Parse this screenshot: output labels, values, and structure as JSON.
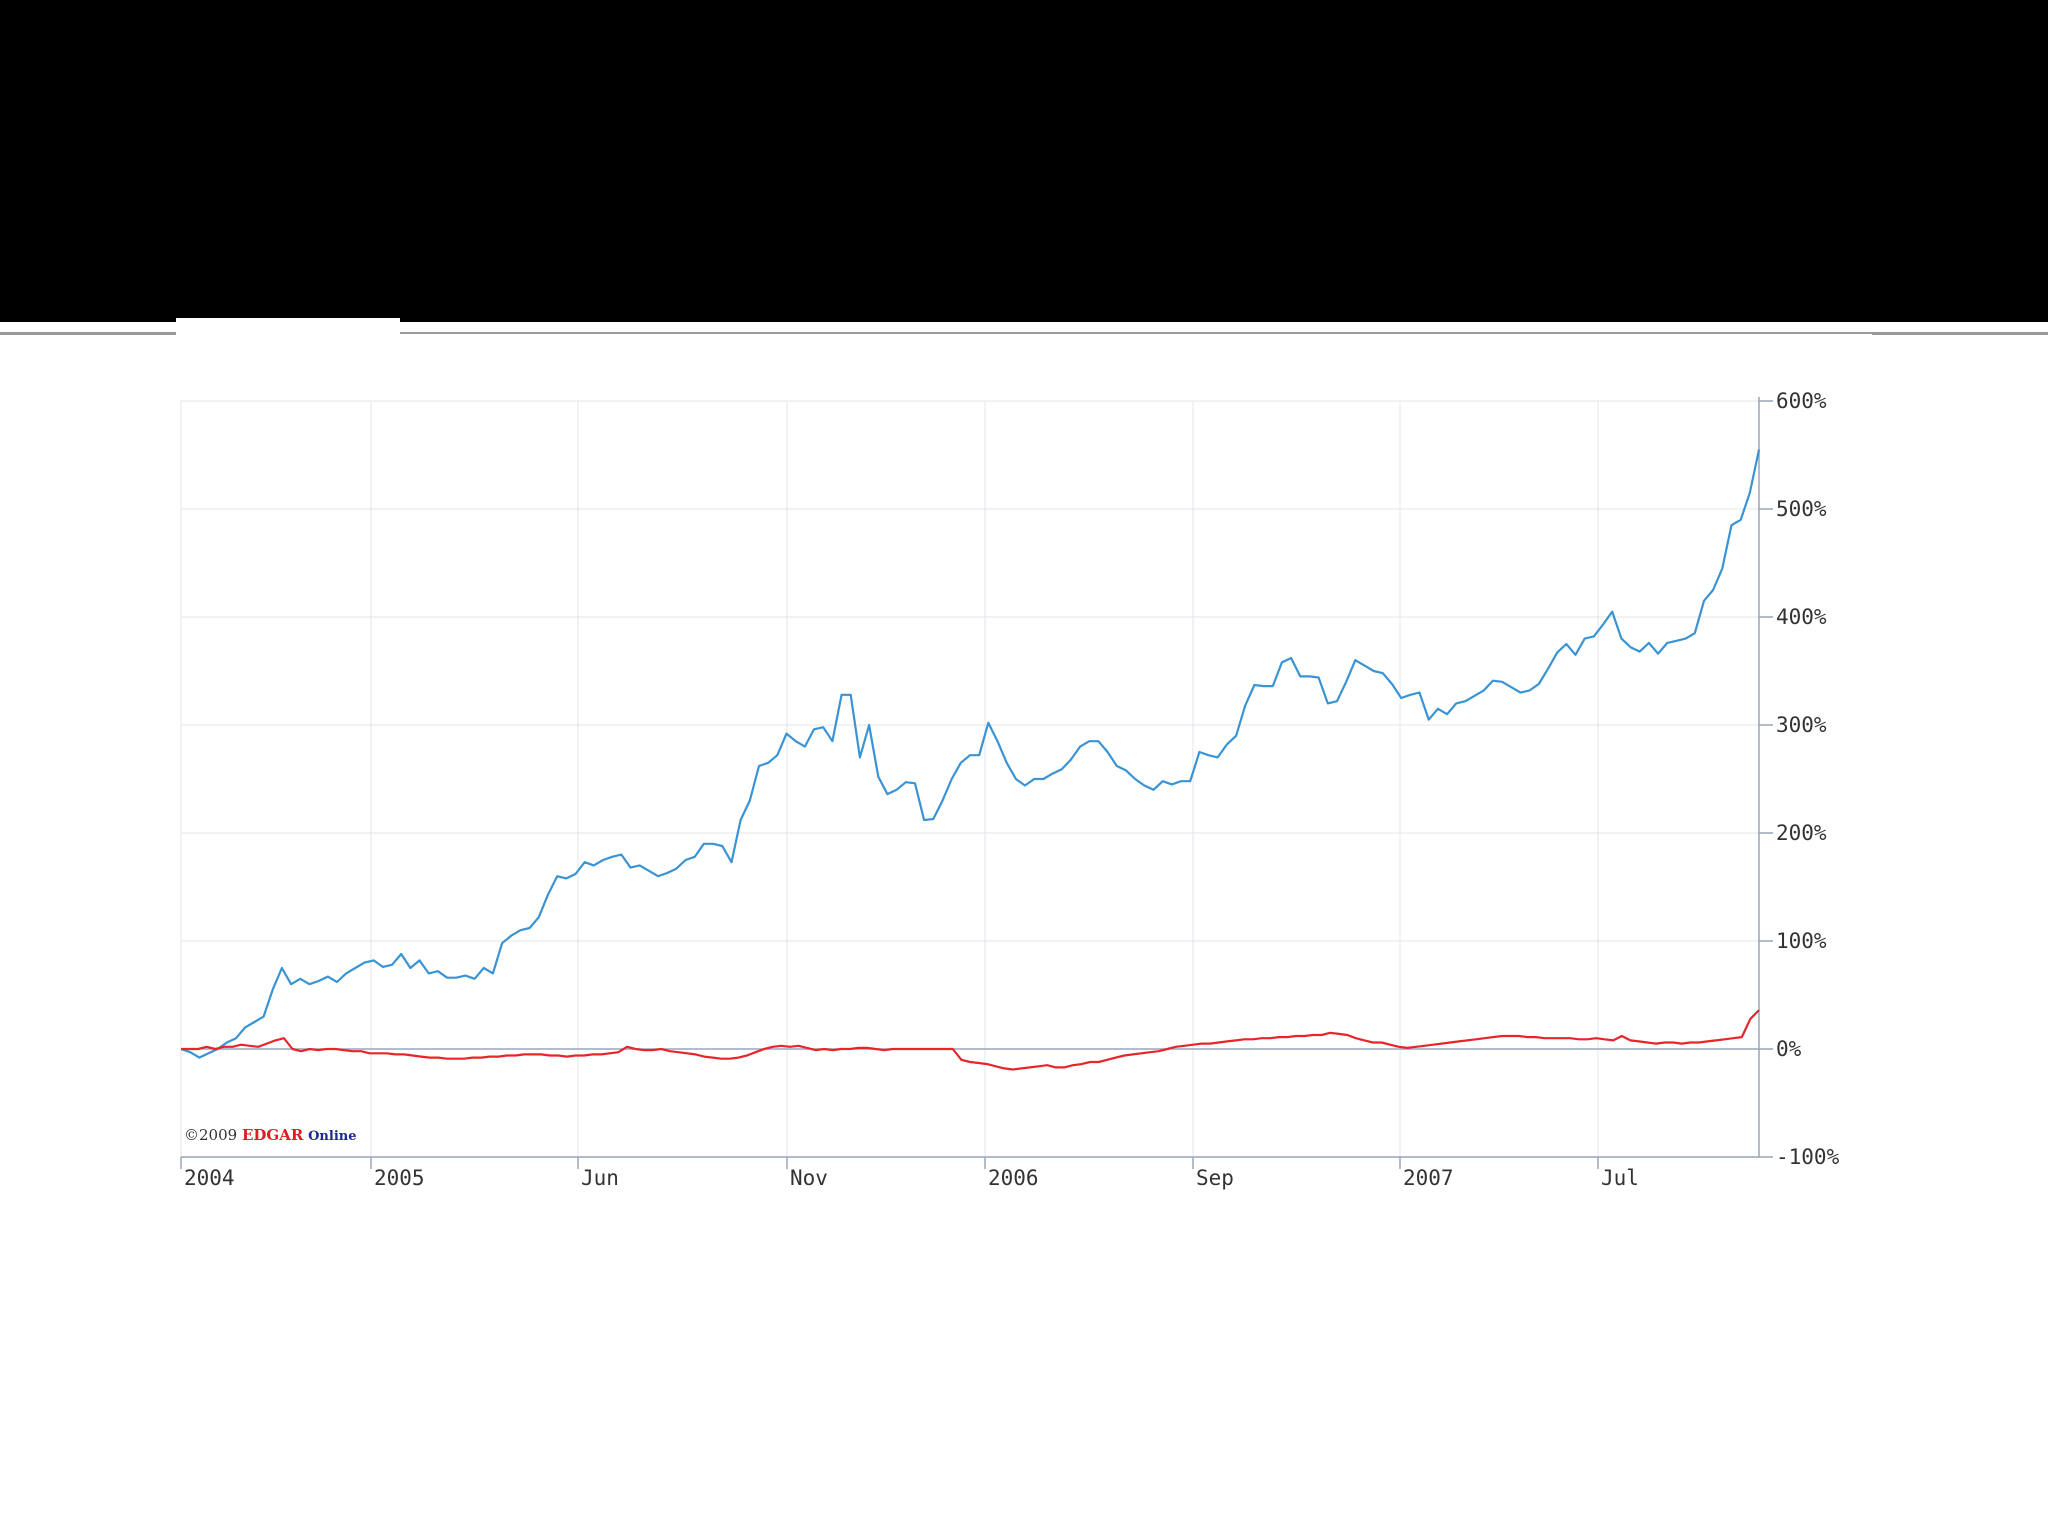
{
  "chart_data": {
    "type": "line",
    "xlabel": "",
    "ylabel": "",
    "ylim": [
      -100,
      600
    ],
    "y_ticks": [
      "600%",
      "500%",
      "400%",
      "300%",
      "200%",
      "100%",
      "0%",
      "-100%"
    ],
    "y_tick_values": [
      600,
      500,
      400,
      300,
      200,
      100,
      0,
      -100
    ],
    "x_ticks": [
      "2004",
      "2005",
      "Jun",
      "Nov",
      "2006",
      "Sep",
      "2007",
      "Jul"
    ],
    "grid": true,
    "y_axis_position": "right",
    "series": [
      {
        "color": "#3a93d3",
        "values": [
          0,
          -3,
          -8,
          -4,
          0,
          6,
          10,
          20,
          25,
          30,
          55,
          75,
          60,
          65,
          60,
          63,
          67,
          62,
          70,
          75,
          80,
          82,
          76,
          78,
          88,
          75,
          82,
          70,
          72,
          66,
          66,
          68,
          65,
          75,
          70,
          98,
          105,
          110,
          112,
          122,
          143,
          160,
          158,
          162,
          173,
          170,
          175,
          178,
          180,
          168,
          170,
          165,
          160,
          163,
          167,
          175,
          178,
          190,
          190,
          188,
          173,
          212,
          230,
          262,
          265,
          272,
          292,
          285,
          280,
          296,
          298,
          285,
          328,
          328,
          270,
          300,
          252,
          236,
          240,
          247,
          246,
          212,
          213,
          230,
          250,
          265,
          272,
          272,
          302,
          285,
          265,
          250,
          244,
          250,
          250,
          255,
          259,
          268,
          280,
          285,
          285,
          275,
          262,
          258,
          250,
          244,
          240,
          248,
          245,
          248,
          248,
          275,
          272,
          270,
          282,
          290,
          318,
          337,
          336,
          336,
          358,
          362,
          345,
          345,
          344,
          320,
          322,
          340,
          360,
          355,
          350,
          348,
          338,
          325,
          328,
          330,
          305,
          315,
          310,
          320,
          322,
          327,
          332,
          341,
          340,
          335,
          330,
          332,
          338,
          352,
          367,
          375,
          365,
          380,
          382,
          393,
          405,
          380,
          372,
          368,
          376,
          366,
          376,
          378,
          380,
          385,
          415,
          425,
          445,
          485,
          490,
          515,
          555
        ]
      },
      {
        "color": "#e8252b",
        "values": [
          0,
          0,
          0,
          2,
          0,
          2,
          2,
          4,
          3,
          2,
          5,
          8,
          10,
          0,
          -2,
          0,
          -1,
          0,
          0,
          -1,
          -2,
          -2,
          -4,
          -4,
          -4,
          -5,
          -5,
          -6,
          -7,
          -8,
          -8,
          -9,
          -9,
          -9,
          -8,
          -8,
          -7,
          -7,
          -6,
          -6,
          -5,
          -5,
          -5,
          -6,
          -6,
          -7,
          -6,
          -6,
          -5,
          -5,
          -4,
          -3,
          2,
          0,
          -1,
          -1,
          0,
          -2,
          -3,
          -4,
          -5,
          -7,
          -8,
          -9,
          -9,
          -8,
          -6,
          -3,
          0,
          2,
          3,
          2,
          3,
          1,
          -1,
          0,
          -1,
          0,
          0,
          1,
          1,
          0,
          -1,
          0,
          0,
          0,
          0,
          0,
          0,
          0,
          0,
          -10,
          -12,
          -13,
          -14,
          -16,
          -18,
          -19,
          -18,
          -17,
          -16,
          -15,
          -17,
          -17,
          -15,
          -14,
          -12,
          -12,
          -10,
          -8,
          -6,
          -5,
          -4,
          -3,
          -2,
          0,
          2,
          3,
          4,
          5,
          5,
          6,
          7,
          8,
          9,
          9,
          10,
          10,
          11,
          11,
          12,
          12,
          13,
          13,
          15,
          14,
          13,
          10,
          8,
          6,
          6,
          4,
          2,
          1,
          2,
          3,
          4,
          5,
          6,
          7,
          8,
          9,
          10,
          11,
          12,
          12,
          12,
          11,
          11,
          10,
          10,
          10,
          10,
          9,
          9,
          10,
          9,
          8,
          12,
          8,
          7,
          6,
          5,
          6,
          6,
          5,
          6,
          6,
          7,
          8,
          9,
          10,
          11,
          28,
          36
        ]
      }
    ]
  },
  "copyright": {
    "year_text": "©2009",
    "brand_red": "EDGAR",
    "brand_blue": "Online"
  }
}
